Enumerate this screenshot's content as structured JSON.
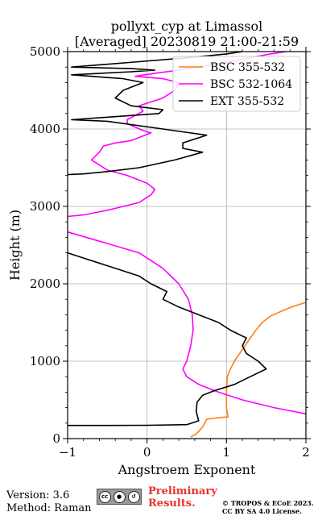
{
  "chart_data": {
    "type": "line",
    "title": "pollyxt_cyp at Limassol",
    "subtitle": "[Averaged] 20230819 21:00-21:59",
    "xlabel": "Angstroem Exponent",
    "ylabel": "Height (m)",
    "xlim": [
      -1,
      2
    ],
    "ylim": [
      0,
      5000
    ],
    "xticks": [
      "−1",
      "0",
      "1",
      "2"
    ],
    "yticks": [
      "0",
      "1000",
      "2000",
      "3000",
      "4000",
      "5000"
    ],
    "grid": true,
    "legend_position": "top-right",
    "series": [
      {
        "name": "BSC 355-532",
        "color": "#ff7f0e",
        "points": [
          [
            0.55,
            20
          ],
          [
            0.62,
            60
          ],
          [
            0.7,
            150
          ],
          [
            0.75,
            250
          ],
          [
            0.82,
            260
          ],
          [
            0.9,
            270
          ],
          [
            1.02,
            280
          ],
          [
            1.0,
            400
          ],
          [
            1.0,
            600
          ],
          [
            1.01,
            800
          ],
          [
            1.05,
            900
          ],
          [
            1.1,
            1000
          ],
          [
            1.2,
            1150
          ],
          [
            1.3,
            1300
          ],
          [
            1.37,
            1400
          ],
          [
            1.45,
            1500
          ],
          [
            1.55,
            1580
          ],
          [
            1.7,
            1650
          ],
          [
            1.82,
            1700
          ],
          [
            2.0,
            1760
          ]
        ]
      },
      {
        "name": "BSC 532-1064",
        "color": "#ff00ff",
        "points": [
          [
            2.0,
            320
          ],
          [
            1.6,
            400
          ],
          [
            1.2,
            500
          ],
          [
            0.9,
            600
          ],
          [
            0.65,
            700
          ],
          [
            0.5,
            800
          ],
          [
            0.45,
            900
          ],
          [
            0.5,
            1000
          ],
          [
            0.55,
            1200
          ],
          [
            0.58,
            1400
          ],
          [
            0.57,
            1600
          ],
          [
            0.52,
            1800
          ],
          [
            0.4,
            2000
          ],
          [
            0.2,
            2200
          ],
          [
            -0.1,
            2400
          ],
          [
            -0.6,
            2550
          ],
          [
            -1.0,
            2670
          ],
          [
            null,
            null
          ],
          [
            -1.0,
            2870
          ],
          [
            -0.8,
            2890
          ],
          [
            -0.5,
            2950
          ],
          [
            -0.3,
            3000
          ],
          [
            -0.1,
            3050
          ],
          [
            0.05,
            3150
          ],
          [
            0.1,
            3220
          ],
          [
            0.0,
            3300
          ],
          [
            -0.25,
            3400
          ],
          [
            -0.5,
            3470
          ],
          [
            -0.7,
            3600
          ],
          [
            -0.6,
            3700
          ],
          [
            -0.55,
            3780
          ],
          [
            -0.4,
            3820
          ],
          [
            -0.2,
            3850
          ],
          [
            0.05,
            3950
          ],
          [
            -0.05,
            3980
          ],
          [
            -0.25,
            4070
          ],
          [
            -0.25,
            4120
          ],
          [
            -0.05,
            4230
          ],
          [
            -0.1,
            4300
          ],
          [
            0.2,
            4400
          ],
          [
            0.35,
            4500
          ],
          [
            0.4,
            4600
          ],
          [
            0.2,
            4650
          ],
          [
            -0.15,
            4680
          ],
          [
            0.1,
            4720
          ],
          [
            0.4,
            4760
          ],
          [
            0.75,
            4820
          ],
          [
            1.2,
            4900
          ],
          [
            1.5,
            4960
          ],
          [
            1.75,
            5000
          ]
        ]
      },
      {
        "name": "EXT 355-532",
        "color": "#000000",
        "points": [
          [
            -1.0,
            170
          ],
          [
            -0.5,
            170
          ],
          [
            0.0,
            172
          ],
          [
            0.5,
            180
          ],
          [
            0.65,
            230
          ],
          [
            0.62,
            350
          ],
          [
            0.63,
            470
          ],
          [
            0.7,
            560
          ],
          [
            0.85,
            620
          ],
          [
            1.1,
            700
          ],
          [
            1.3,
            800
          ],
          [
            1.5,
            900
          ],
          [
            1.4,
            1000
          ],
          [
            1.25,
            1100
          ],
          [
            1.2,
            1200
          ],
          [
            1.25,
            1300
          ],
          [
            1.05,
            1400
          ],
          [
            0.9,
            1500
          ],
          [
            0.65,
            1600
          ],
          [
            0.4,
            1700
          ],
          [
            0.2,
            1800
          ],
          [
            0.25,
            1900
          ],
          [
            0.05,
            2000
          ],
          [
            -0.1,
            2100
          ],
          [
            -0.4,
            2200
          ],
          [
            -0.7,
            2300
          ],
          [
            -1.0,
            2400
          ],
          [
            null,
            null
          ],
          [
            -1.0,
            3410
          ],
          [
            -0.8,
            3420
          ],
          [
            -0.5,
            3450
          ],
          [
            -0.1,
            3500
          ],
          [
            0.35,
            3600
          ],
          [
            0.7,
            3700
          ],
          [
            0.45,
            3750
          ],
          [
            0.45,
            3820
          ],
          [
            0.75,
            3920
          ],
          [
            0.2,
            4000
          ],
          [
            -0.5,
            4100
          ],
          [
            -0.95,
            4120
          ],
          [
            0.15,
            4200
          ],
          [
            0.2,
            4250
          ],
          [
            -0.2,
            4300
          ],
          [
            -0.4,
            4400
          ],
          [
            -0.3,
            4500
          ],
          [
            -0.05,
            4600
          ],
          [
            -0.3,
            4650
          ],
          [
            -0.95,
            4700
          ],
          [
            -0.2,
            4740
          ],
          [
            0.1,
            4760
          ],
          [
            -0.2,
            4780
          ],
          [
            -0.95,
            4800
          ],
          [
            -0.1,
            4870
          ],
          [
            0.5,
            4920
          ],
          [
            1.0,
            4970
          ],
          [
            1.2,
            5000
          ]
        ]
      }
    ]
  },
  "footer": {
    "version": "Version: 3.6",
    "method": "Method: Raman",
    "badge_text": "BY SA",
    "prelim_line1": "Preliminary",
    "prelim_line2": "Results.",
    "copyright_line1": "© TROPOS & ECoE 2023.",
    "copyright_line2": "CC BY SA 4.0 License."
  }
}
